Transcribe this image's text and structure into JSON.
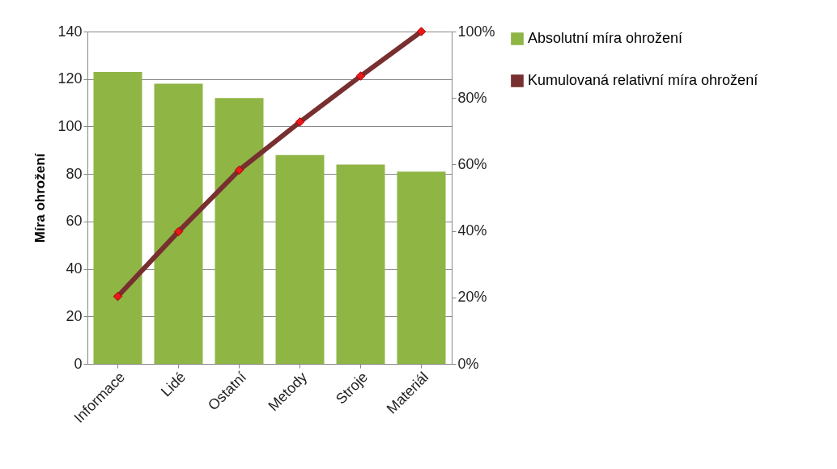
{
  "chart_data": {
    "type": "bar",
    "ylabel": "Míra ohrožení",
    "categories": [
      "Informace",
      "Lidé",
      "Ostatní",
      "Metody",
      "Stroje",
      "Materiál"
    ],
    "series": [
      {
        "name": "Absolutní míra ohrožení",
        "color": "#8fb545",
        "values": [
          123,
          118,
          112,
          88,
          84,
          81
        ]
      },
      {
        "name": "Kumulovaná relativní míra ohrožení",
        "type": "line",
        "axis": "y2",
        "color": "#772f2f",
        "values": [
          20.3,
          39.8,
          58.3,
          72.8,
          86.6,
          100
        ]
      }
    ],
    "ylim": [
      0,
      140
    ],
    "yticks": [
      0,
      20,
      40,
      60,
      80,
      100,
      120,
      140
    ],
    "y2lim": [
      0,
      100
    ],
    "y2ticks": [
      {
        "value": 0,
        "label": "0%"
      },
      {
        "value": 20,
        "label": "20%"
      },
      {
        "value": 40,
        "label": "40%"
      },
      {
        "value": 60,
        "label": "60%"
      },
      {
        "value": 80,
        "label": "80%"
      },
      {
        "value": 100,
        "label": "100%"
      }
    ],
    "grid": "y",
    "legend": "right",
    "marker": "diamond",
    "line_style": "solid"
  }
}
